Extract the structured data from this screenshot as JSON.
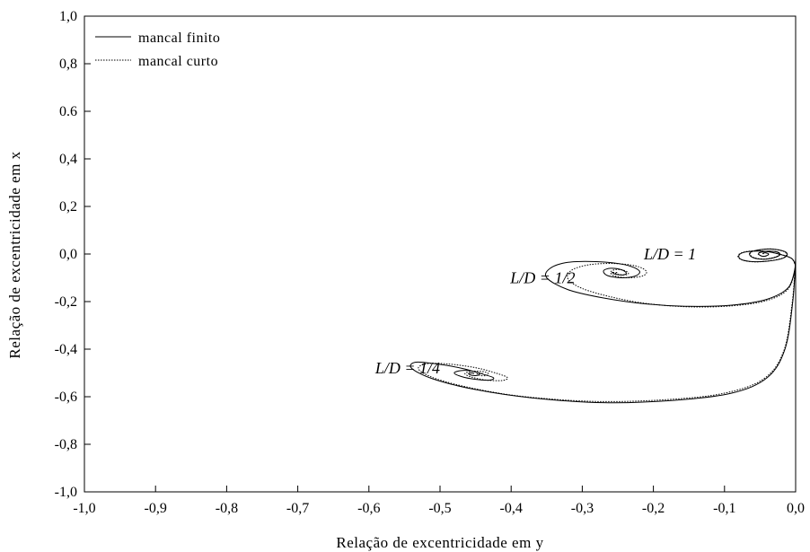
{
  "chart_data": {
    "type": "line",
    "xlabel": "Relação de excentricidade em y",
    "ylabel": "Relação de excentricidade em x",
    "xlim": [
      -1.0,
      0.0
    ],
    "ylim": [
      -1.0,
      1.0
    ],
    "x_ticks": [
      "-1,0",
      "-0,9",
      "-0,8",
      "-0,7",
      "-0,6",
      "-0,5",
      "-0,4",
      "-0,3",
      "-0,2",
      "-0,1",
      "0,0"
    ],
    "y_ticks": [
      "-1,0",
      "-0,8",
      "-0,6",
      "-0,4",
      "-0,2",
      "0,0",
      "0,2",
      "0,4",
      "0.6",
      "0,8",
      "1,0"
    ],
    "grid": false,
    "legend_position": "top-left",
    "legend": [
      {
        "label": "mancal finito",
        "style": "solid"
      },
      {
        "label": "mancal curto",
        "style": "dotted"
      }
    ],
    "annotations": [
      {
        "text": "L/D = 1",
        "x": -0.14,
        "y": 0.0
      },
      {
        "text": "L/D = 1/2",
        "x": -0.31,
        "y": -0.1
      },
      {
        "text": "L/D = 1/4",
        "x": -0.5,
        "y": -0.48
      }
    ],
    "series": [
      {
        "style": "solid",
        "curve": "L/D = 1",
        "x": [
          0.0,
          -0.005,
          -0.02,
          -0.04,
          -0.06,
          -0.075,
          -0.08,
          -0.075,
          -0.06,
          -0.04,
          -0.02,
          -0.012,
          -0.015,
          -0.03,
          -0.045,
          -0.06,
          -0.065,
          -0.06,
          -0.045,
          -0.03,
          -0.022,
          -0.025,
          -0.035,
          -0.045,
          -0.052,
          -0.05,
          -0.045,
          -0.04,
          -0.038,
          -0.042,
          -0.046,
          -0.045
        ],
        "y": [
          -0.05,
          -0.02,
          -0.003,
          0.01,
          0.012,
          0.005,
          -0.01,
          -0.025,
          -0.032,
          -0.03,
          -0.02,
          -0.005,
          0.01,
          0.02,
          0.02,
          0.012,
          0.0,
          -0.015,
          -0.022,
          -0.015,
          -0.003,
          0.008,
          0.012,
          0.01,
          0.003,
          -0.006,
          -0.01,
          -0.006,
          0.0,
          0.005,
          0.003,
          0.0
        ]
      },
      {
        "style": "dotted",
        "curve": "L/D = 1",
        "x": [
          0.0,
          -0.006,
          -0.022,
          -0.042,
          -0.062,
          -0.077,
          -0.081,
          -0.074,
          -0.058,
          -0.038,
          -0.019,
          -0.013,
          -0.017,
          -0.032,
          -0.047,
          -0.061,
          -0.064,
          -0.058,
          -0.043,
          -0.029,
          -0.023,
          -0.027,
          -0.037,
          -0.047,
          -0.053,
          -0.049,
          -0.044,
          -0.039,
          -0.039,
          -0.043,
          -0.046,
          -0.045
        ],
        "y": [
          -0.05,
          -0.018,
          -0.001,
          0.011,
          0.013,
          0.004,
          -0.012,
          -0.026,
          -0.033,
          -0.029,
          -0.018,
          -0.003,
          0.011,
          0.021,
          0.019,
          0.01,
          -0.002,
          -0.016,
          -0.021,
          -0.013,
          -0.002,
          0.009,
          0.012,
          0.009,
          0.002,
          -0.007,
          -0.01,
          -0.005,
          0.001,
          0.005,
          0.002,
          0.0
        ]
      },
      {
        "style": "solid",
        "curve": "L/D = 1/2",
        "x": [
          0.0,
          -0.01,
          -0.04,
          -0.09,
          -0.15,
          -0.21,
          -0.27,
          -0.32,
          -0.35,
          -0.345,
          -0.32,
          -0.28,
          -0.24,
          -0.22,
          -0.225,
          -0.245,
          -0.265,
          -0.27,
          -0.26,
          -0.245,
          -0.238,
          -0.243,
          -0.253,
          -0.258,
          -0.255
        ],
        "y": [
          -0.05,
          -0.14,
          -0.19,
          -0.215,
          -0.22,
          -0.21,
          -0.185,
          -0.15,
          -0.1,
          -0.06,
          -0.035,
          -0.032,
          -0.045,
          -0.07,
          -0.092,
          -0.1,
          -0.09,
          -0.07,
          -0.06,
          -0.066,
          -0.08,
          -0.088,
          -0.085,
          -0.077,
          -0.078
        ]
      },
      {
        "style": "dotted",
        "curve": "L/D = 1/2",
        "x": [
          0.0,
          -0.01,
          -0.04,
          -0.09,
          -0.15,
          -0.21,
          -0.26,
          -0.3,
          -0.32,
          -0.315,
          -0.29,
          -0.255,
          -0.225,
          -0.21,
          -0.215,
          -0.235,
          -0.255,
          -0.26,
          -0.252,
          -0.24,
          -0.235,
          -0.24,
          -0.25,
          -0.254,
          -0.25
        ],
        "y": [
          -0.05,
          -0.145,
          -0.195,
          -0.218,
          -0.222,
          -0.208,
          -0.18,
          -0.145,
          -0.105,
          -0.068,
          -0.045,
          -0.04,
          -0.05,
          -0.072,
          -0.092,
          -0.1,
          -0.092,
          -0.075,
          -0.065,
          -0.07,
          -0.082,
          -0.088,
          -0.085,
          -0.078,
          -0.078
        ]
      },
      {
        "style": "solid",
        "curve": "L/D = 1/4",
        "x": [
          0.0,
          -0.004,
          -0.015,
          -0.04,
          -0.09,
          -0.17,
          -0.27,
          -0.37,
          -0.45,
          -0.51,
          -0.54,
          -0.535,
          -0.51,
          -0.47,
          -0.44,
          -0.425,
          -0.43,
          -0.45,
          -0.47,
          -0.48,
          -0.47,
          -0.455,
          -0.445,
          -0.447,
          -0.455,
          -0.46,
          -0.455,
          -0.452
        ],
        "y": [
          -0.02,
          -0.2,
          -0.4,
          -0.52,
          -0.585,
          -0.615,
          -0.625,
          -0.605,
          -0.57,
          -0.525,
          -0.48,
          -0.455,
          -0.46,
          -0.48,
          -0.505,
          -0.52,
          -0.53,
          -0.527,
          -0.515,
          -0.5,
          -0.49,
          -0.492,
          -0.502,
          -0.51,
          -0.51,
          -0.503,
          -0.5,
          -0.503
        ]
      },
      {
        "style": "dotted",
        "curve": "L/D = 1/4",
        "x": [
          0.0,
          -0.005,
          -0.017,
          -0.045,
          -0.1,
          -0.18,
          -0.28,
          -0.38,
          -0.45,
          -0.505,
          -0.53,
          -0.52,
          -0.49,
          -0.45,
          -0.42,
          -0.405,
          -0.413,
          -0.435,
          -0.455,
          -0.465,
          -0.455,
          -0.44,
          -0.432,
          -0.435,
          -0.443,
          -0.448,
          -0.444,
          -0.44
        ],
        "y": [
          -0.02,
          -0.21,
          -0.41,
          -0.525,
          -0.585,
          -0.612,
          -0.62,
          -0.6,
          -0.567,
          -0.525,
          -0.485,
          -0.462,
          -0.462,
          -0.478,
          -0.502,
          -0.52,
          -0.532,
          -0.53,
          -0.518,
          -0.503,
          -0.493,
          -0.494,
          -0.503,
          -0.511,
          -0.511,
          -0.504,
          -0.5,
          -0.503
        ]
      }
    ]
  }
}
